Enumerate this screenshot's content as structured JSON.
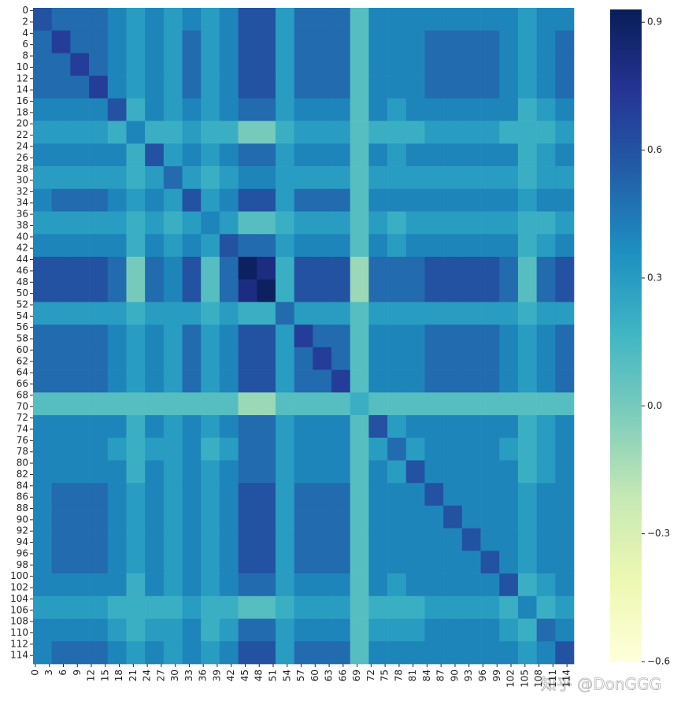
{
  "chart_data": {
    "type": "heatmap",
    "xlim": [
      -0.5,
      115.5
    ],
    "ylim": [
      -0.5,
      115.5
    ],
    "xticks": [
      0,
      3,
      6,
      9,
      12,
      15,
      18,
      21,
      24,
      27,
      30,
      33,
      36,
      39,
      42,
      45,
      48,
      51,
      54,
      57,
      60,
      63,
      66,
      69,
      72,
      75,
      78,
      81,
      84,
      87,
      90,
      93,
      96,
      99,
      102,
      105,
      108,
      111,
      114
    ],
    "yticks": [
      0,
      2,
      4,
      6,
      8,
      10,
      12,
      14,
      16,
      18,
      20,
      22,
      24,
      26,
      28,
      30,
      32,
      34,
      36,
      38,
      40,
      42,
      44,
      46,
      48,
      50,
      52,
      54,
      56,
      58,
      60,
      62,
      64,
      66,
      68,
      70,
      72,
      74,
      76,
      78,
      80,
      82,
      84,
      86,
      88,
      90,
      92,
      94,
      96,
      98,
      100,
      102,
      104,
      106,
      108,
      110,
      112,
      114
    ],
    "zlim": [
      -0.6,
      0.93
    ],
    "colorbar_ticks": [
      0.9,
      0.6,
      0.3,
      {
        "value": 0,
        "label": "0.0"
      },
      {
        "value": -0.3,
        "label": "−0.3"
      },
      {
        "value": -0.6,
        "label": "−0.6"
      }
    ],
    "colormap": [
      "#ffffd9",
      "#edf8b1",
      "#c7e9b4",
      "#7fcdbb",
      "#41b6c4",
      "#1d91c0",
      "#225ea8",
      "#253494",
      "#081d58"
    ],
    "watermark": "知乎 @DonGGG",
    "z": [
      [
        0.6,
        0.5,
        0.5,
        0.5,
        0.4,
        0.3,
        0.4,
        0.3,
        0.4,
        0.3,
        0.4,
        0.6,
        0.6,
        0.3,
        0.5,
        0.5,
        0.5,
        0.1,
        0.4,
        0.4,
        0.4,
        0.4,
        0.4,
        0.4,
        0.4,
        0.4,
        0.3,
        0.4,
        0.4
      ],
      [
        0.5,
        0.7,
        0.5,
        0.5,
        0.4,
        0.3,
        0.4,
        0.3,
        0.5,
        0.3,
        0.4,
        0.6,
        0.6,
        0.3,
        0.5,
        0.5,
        0.5,
        0.1,
        0.4,
        0.4,
        0.4,
        0.5,
        0.5,
        0.5,
        0.5,
        0.4,
        0.3,
        0.4,
        0.5
      ],
      [
        0.5,
        0.5,
        0.7,
        0.5,
        0.4,
        0.3,
        0.4,
        0.3,
        0.5,
        0.3,
        0.4,
        0.6,
        0.6,
        0.3,
        0.5,
        0.5,
        0.5,
        0.1,
        0.4,
        0.4,
        0.4,
        0.5,
        0.5,
        0.5,
        0.5,
        0.4,
        0.3,
        0.4,
        0.5
      ],
      [
        0.5,
        0.5,
        0.5,
        0.7,
        0.4,
        0.3,
        0.4,
        0.3,
        0.5,
        0.3,
        0.4,
        0.6,
        0.6,
        0.3,
        0.5,
        0.5,
        0.5,
        0.1,
        0.4,
        0.4,
        0.4,
        0.5,
        0.5,
        0.5,
        0.5,
        0.4,
        0.3,
        0.4,
        0.5
      ],
      [
        0.4,
        0.4,
        0.4,
        0.4,
        0.6,
        0.2,
        0.4,
        0.3,
        0.4,
        0.3,
        0.4,
        0.5,
        0.5,
        0.3,
        0.4,
        0.4,
        0.4,
        0.1,
        0.4,
        0.3,
        0.4,
        0.4,
        0.4,
        0.4,
        0.4,
        0.4,
        0.2,
        0.3,
        0.4
      ],
      [
        0.3,
        0.3,
        0.3,
        0.3,
        0.2,
        0.4,
        0.2,
        0.2,
        0.3,
        0.2,
        0.2,
        0,
        0,
        0.2,
        0.3,
        0.3,
        0.3,
        0.1,
        0.2,
        0.2,
        0.2,
        0.3,
        0.3,
        0.3,
        0.3,
        0.2,
        0.2,
        0.2,
        0.3
      ],
      [
        0.4,
        0.4,
        0.4,
        0.4,
        0.4,
        0.2,
        0.6,
        0.3,
        0.4,
        0.3,
        0.4,
        0.5,
        0.5,
        0.3,
        0.4,
        0.4,
        0.4,
        0.1,
        0.4,
        0.3,
        0.4,
        0.4,
        0.4,
        0.4,
        0.4,
        0.4,
        0.2,
        0.3,
        0.4
      ],
      [
        0.3,
        0.3,
        0.3,
        0.3,
        0.3,
        0.2,
        0.3,
        0.5,
        0.3,
        0.2,
        0.3,
        0.4,
        0.4,
        0.3,
        0.3,
        0.3,
        0.3,
        0.1,
        0.3,
        0.3,
        0.3,
        0.3,
        0.3,
        0.3,
        0.3,
        0.3,
        0.2,
        0.3,
        0.3
      ],
      [
        0.4,
        0.5,
        0.5,
        0.5,
        0.4,
        0.3,
        0.4,
        0.3,
        0.6,
        0.3,
        0.4,
        0.6,
        0.6,
        0.3,
        0.5,
        0.5,
        0.5,
        0.1,
        0.4,
        0.4,
        0.4,
        0.4,
        0.4,
        0.4,
        0.4,
        0.4,
        0.3,
        0.4,
        0.4
      ],
      [
        0.3,
        0.3,
        0.3,
        0.3,
        0.3,
        0.2,
        0.3,
        0.2,
        0.3,
        0.4,
        0.3,
        0.1,
        0.1,
        0.2,
        0.3,
        0.3,
        0.3,
        0.1,
        0.3,
        0.2,
        0.3,
        0.3,
        0.3,
        0.3,
        0.3,
        0.3,
        0.2,
        0.2,
        0.3
      ],
      [
        0.4,
        0.4,
        0.4,
        0.4,
        0.4,
        0.2,
        0.4,
        0.3,
        0.4,
        0.3,
        0.6,
        0.5,
        0.5,
        0.3,
        0.4,
        0.4,
        0.4,
        0.1,
        0.4,
        0.3,
        0.4,
        0.4,
        0.4,
        0.4,
        0.4,
        0.4,
        0.2,
        0.3,
        0.4
      ],
      [
        0.6,
        0.6,
        0.6,
        0.6,
        0.5,
        0,
        0.5,
        0.4,
        0.6,
        0.1,
        0.5,
        0.9,
        0.8,
        0.2,
        0.6,
        0.6,
        0.6,
        -0.1,
        0.5,
        0.5,
        0.5,
        0.6,
        0.6,
        0.6,
        0.6,
        0.5,
        0.1,
        0.5,
        0.6
      ],
      [
        0.6,
        0.6,
        0.6,
        0.6,
        0.5,
        0,
        0.5,
        0.4,
        0.6,
        0.1,
        0.5,
        0.8,
        0.9,
        0.2,
        0.6,
        0.6,
        0.6,
        -0.1,
        0.5,
        0.5,
        0.5,
        0.6,
        0.6,
        0.6,
        0.6,
        0.5,
        0.1,
        0.5,
        0.6
      ],
      [
        0.3,
        0.3,
        0.3,
        0.3,
        0.3,
        0.2,
        0.3,
        0.3,
        0.3,
        0.2,
        0.3,
        0.2,
        0.2,
        0.5,
        0.3,
        0.3,
        0.3,
        0.1,
        0.3,
        0.3,
        0.3,
        0.3,
        0.3,
        0.3,
        0.3,
        0.3,
        0.2,
        0.3,
        0.3
      ],
      [
        0.5,
        0.5,
        0.5,
        0.5,
        0.4,
        0.3,
        0.4,
        0.3,
        0.5,
        0.3,
        0.4,
        0.6,
        0.6,
        0.3,
        0.7,
        0.5,
        0.5,
        0.1,
        0.4,
        0.4,
        0.4,
        0.5,
        0.5,
        0.5,
        0.5,
        0.4,
        0.3,
        0.4,
        0.5
      ],
      [
        0.5,
        0.5,
        0.5,
        0.5,
        0.4,
        0.3,
        0.4,
        0.3,
        0.5,
        0.3,
        0.4,
        0.6,
        0.6,
        0.3,
        0.5,
        0.7,
        0.5,
        0.1,
        0.4,
        0.4,
        0.4,
        0.5,
        0.5,
        0.5,
        0.5,
        0.4,
        0.3,
        0.4,
        0.5
      ],
      [
        0.5,
        0.5,
        0.5,
        0.5,
        0.4,
        0.3,
        0.4,
        0.3,
        0.5,
        0.3,
        0.4,
        0.6,
        0.6,
        0.3,
        0.5,
        0.5,
        0.7,
        0.1,
        0.4,
        0.4,
        0.4,
        0.5,
        0.5,
        0.5,
        0.5,
        0.4,
        0.3,
        0.4,
        0.5
      ],
      [
        0.1,
        0.1,
        0.1,
        0.1,
        0.1,
        0.1,
        0.1,
        0.1,
        0.1,
        0.1,
        0.1,
        -0.1,
        -0.1,
        0.1,
        0.1,
        0.1,
        0.1,
        0.2,
        0.1,
        0.1,
        0.1,
        0.1,
        0.1,
        0.1,
        0.1,
        0.1,
        0.1,
        0.1,
        0.1
      ],
      [
        0.4,
        0.4,
        0.4,
        0.4,
        0.4,
        0.2,
        0.4,
        0.3,
        0.4,
        0.3,
        0.4,
        0.5,
        0.5,
        0.3,
        0.4,
        0.4,
        0.4,
        0.1,
        0.6,
        0.3,
        0.4,
        0.4,
        0.4,
        0.4,
        0.4,
        0.4,
        0.2,
        0.3,
        0.4
      ],
      [
        0.4,
        0.4,
        0.4,
        0.4,
        0.3,
        0.2,
        0.3,
        0.3,
        0.4,
        0.2,
        0.3,
        0.5,
        0.5,
        0.3,
        0.4,
        0.4,
        0.4,
        0.1,
        0.3,
        0.5,
        0.3,
        0.4,
        0.4,
        0.4,
        0.4,
        0.3,
        0.2,
        0.3,
        0.4
      ],
      [
        0.4,
        0.4,
        0.4,
        0.4,
        0.4,
        0.2,
        0.4,
        0.3,
        0.4,
        0.3,
        0.4,
        0.5,
        0.5,
        0.3,
        0.4,
        0.4,
        0.4,
        0.1,
        0.4,
        0.3,
        0.6,
        0.4,
        0.4,
        0.4,
        0.4,
        0.4,
        0.2,
        0.3,
        0.4
      ],
      [
        0.4,
        0.5,
        0.5,
        0.5,
        0.4,
        0.3,
        0.4,
        0.3,
        0.4,
        0.3,
        0.4,
        0.6,
        0.6,
        0.3,
        0.5,
        0.5,
        0.5,
        0.1,
        0.4,
        0.4,
        0.4,
        0.6,
        0.4,
        0.4,
        0.4,
        0.4,
        0.3,
        0.4,
        0.4
      ],
      [
        0.4,
        0.5,
        0.5,
        0.5,
        0.4,
        0.3,
        0.4,
        0.3,
        0.4,
        0.3,
        0.4,
        0.6,
        0.6,
        0.3,
        0.5,
        0.5,
        0.5,
        0.1,
        0.4,
        0.4,
        0.4,
        0.4,
        0.6,
        0.4,
        0.4,
        0.4,
        0.3,
        0.4,
        0.4
      ],
      [
        0.4,
        0.5,
        0.5,
        0.5,
        0.4,
        0.3,
        0.4,
        0.3,
        0.4,
        0.3,
        0.4,
        0.6,
        0.6,
        0.3,
        0.5,
        0.5,
        0.5,
        0.1,
        0.4,
        0.4,
        0.4,
        0.4,
        0.4,
        0.6,
        0.4,
        0.4,
        0.3,
        0.4,
        0.4
      ],
      [
        0.4,
        0.5,
        0.5,
        0.5,
        0.4,
        0.3,
        0.4,
        0.3,
        0.4,
        0.3,
        0.4,
        0.6,
        0.6,
        0.3,
        0.5,
        0.5,
        0.5,
        0.1,
        0.4,
        0.4,
        0.4,
        0.4,
        0.4,
        0.4,
        0.6,
        0.4,
        0.3,
        0.4,
        0.4
      ],
      [
        0.4,
        0.4,
        0.4,
        0.4,
        0.4,
        0.2,
        0.4,
        0.3,
        0.4,
        0.3,
        0.4,
        0.5,
        0.5,
        0.3,
        0.4,
        0.4,
        0.4,
        0.1,
        0.4,
        0.3,
        0.4,
        0.4,
        0.4,
        0.4,
        0.4,
        0.6,
        0.2,
        0.3,
        0.4
      ],
      [
        0.3,
        0.3,
        0.3,
        0.3,
        0.2,
        0.2,
        0.2,
        0.2,
        0.3,
        0.2,
        0.2,
        0.1,
        0.1,
        0.2,
        0.3,
        0.3,
        0.3,
        0.1,
        0.2,
        0.2,
        0.2,
        0.3,
        0.3,
        0.3,
        0.3,
        0.2,
        0.4,
        0.2,
        0.3
      ],
      [
        0.4,
        0.4,
        0.4,
        0.4,
        0.3,
        0.2,
        0.3,
        0.3,
        0.4,
        0.2,
        0.3,
        0.5,
        0.5,
        0.3,
        0.4,
        0.4,
        0.4,
        0.1,
        0.3,
        0.3,
        0.3,
        0.4,
        0.4,
        0.4,
        0.4,
        0.3,
        0.2,
        0.5,
        0.4
      ],
      [
        0.4,
        0.5,
        0.5,
        0.5,
        0.4,
        0.3,
        0.4,
        0.3,
        0.4,
        0.3,
        0.4,
        0.6,
        0.6,
        0.3,
        0.5,
        0.5,
        0.5,
        0.1,
        0.4,
        0.4,
        0.4,
        0.4,
        0.4,
        0.4,
        0.4,
        0.4,
        0.3,
        0.4,
        0.6
      ]
    ]
  }
}
